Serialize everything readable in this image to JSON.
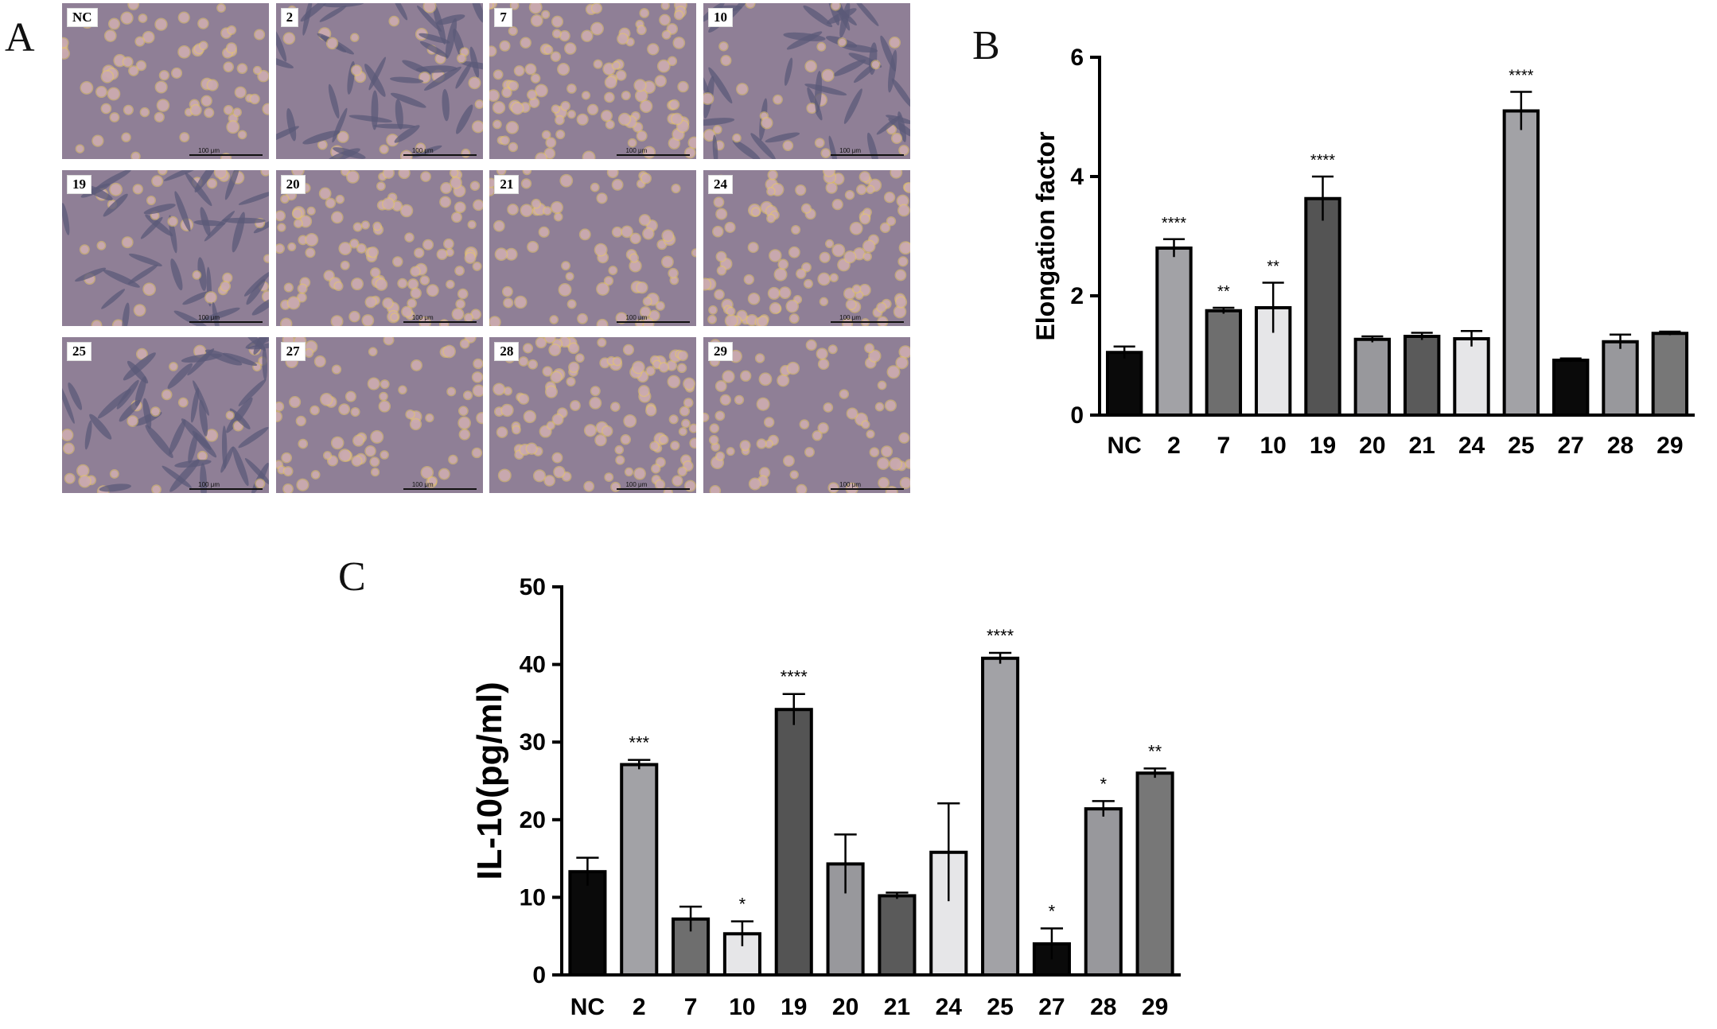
{
  "panels": {
    "a_letter": "A",
    "b_letter": "B",
    "c_letter": "C"
  },
  "micrographs": {
    "scale_label": "100 μm",
    "tiles": [
      {
        "label": "NC",
        "morphology": "round"
      },
      {
        "label": "2",
        "morphology": "elongated"
      },
      {
        "label": "7",
        "morphology": "dense"
      },
      {
        "label": "10",
        "morphology": "elongated"
      },
      {
        "label": "19",
        "morphology": "elongated"
      },
      {
        "label": "20",
        "morphology": "dense"
      },
      {
        "label": "21",
        "morphology": "round"
      },
      {
        "label": "24",
        "morphology": "dense"
      },
      {
        "label": "25",
        "morphology": "elongated"
      },
      {
        "label": "27",
        "morphology": "round"
      },
      {
        "label": "28",
        "morphology": "dense"
      },
      {
        "label": "29",
        "morphology": "round"
      }
    ],
    "colors": {
      "background": "#8f7f96",
      "cell": "#c9a8b4",
      "cell_dark": "#5b5a78",
      "halo": "#e8c76a"
    }
  },
  "chart_data": [
    {
      "type": "bar",
      "ylabel": "Elongation factor",
      "ylim": [
        0,
        6
      ],
      "yticks": [
        0,
        2,
        4,
        6
      ],
      "categories": [
        "NC",
        "2",
        "7",
        "10",
        "19",
        "20",
        "21",
        "24",
        "25",
        "27",
        "28",
        "29"
      ],
      "values": [
        1.05,
        2.8,
        1.75,
        1.8,
        3.63,
        1.27,
        1.32,
        1.28,
        5.1,
        0.92,
        1.23,
        1.37
      ],
      "errors": [
        0.1,
        0.15,
        0.05,
        0.42,
        0.37,
        0.05,
        0.06,
        0.13,
        0.32,
        0.03,
        0.12,
        0.03
      ],
      "significance": [
        "",
        "****",
        "**",
        "**",
        "****",
        "",
        "",
        "",
        "****",
        "",
        "",
        ""
      ],
      "bar_colors": [
        "#0a0a0a",
        "#a2a2a6",
        "#6e6e6e",
        "#e6e6e8",
        "#545454",
        "#98989c",
        "#5a5a5a",
        "#e6e6e8",
        "#a2a2a6",
        "#0a0a0a",
        "#98989c",
        "#777777"
      ]
    },
    {
      "type": "bar",
      "ylabel": "IL-10(pg/ml)",
      "ylim": [
        0,
        50
      ],
      "yticks": [
        0,
        10,
        20,
        30,
        40,
        50
      ],
      "categories": [
        "NC",
        "2",
        "7",
        "10",
        "19",
        "20",
        "21",
        "24",
        "25",
        "27",
        "28",
        "29"
      ],
      "values": [
        13.3,
        27.1,
        7.2,
        5.3,
        34.2,
        14.3,
        10.2,
        15.8,
        40.8,
        4.0,
        21.4,
        26.0
      ],
      "errors": [
        1.8,
        0.6,
        1.6,
        1.6,
        2.0,
        3.8,
        0.4,
        6.3,
        0.7,
        2.0,
        1.0,
        0.6
      ],
      "significance": [
        "",
        "***",
        "",
        "*",
        "****",
        "",
        "",
        "",
        "****",
        "*",
        "*",
        "**"
      ],
      "bar_colors": [
        "#0a0a0a",
        "#a2a2a6",
        "#6e6e6e",
        "#e6e6e8",
        "#545454",
        "#98989c",
        "#5a5a5a",
        "#e6e6e8",
        "#a2a2a6",
        "#0a0a0a",
        "#98989c",
        "#777777"
      ]
    }
  ]
}
